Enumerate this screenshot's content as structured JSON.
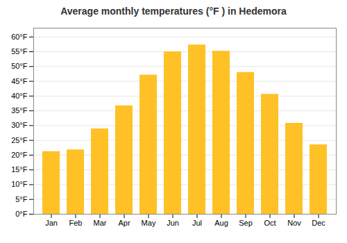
{
  "chart_data": {
    "type": "bar",
    "title": "Average monthly temperatures (°F ) in Hedemora",
    "categories": [
      "Jan",
      "Feb",
      "Mar",
      "Apr",
      "May",
      "Jun",
      "Jul",
      "Aug",
      "Sep",
      "Oct",
      "Nov",
      "Dec"
    ],
    "values": [
      21.2,
      21.8,
      28.9,
      36.7,
      47.1,
      55.0,
      57.3,
      55.2,
      48.0,
      40.6,
      30.8,
      23.5
    ],
    "color": "#FFC125",
    "ylim": [
      0,
      63
    ],
    "yticks": [
      {
        "value": 0,
        "label": "0°F"
      },
      {
        "value": 5,
        "label": "5°F"
      },
      {
        "value": 10,
        "label": "10°F"
      },
      {
        "value": 15,
        "label": "15°F"
      },
      {
        "value": 20,
        "label": "20°F"
      },
      {
        "value": 25,
        "label": "25°F"
      },
      {
        "value": 30,
        "label": "30°F"
      },
      {
        "value": 35,
        "label": "35°F"
      },
      {
        "value": 40,
        "label": "40°F"
      },
      {
        "value": 45,
        "label": "45°F"
      },
      {
        "value": 50,
        "label": "50°F"
      },
      {
        "value": 55,
        "label": "55°F"
      },
      {
        "value": 60,
        "label": "60°F"
      }
    ],
    "grid": true
  }
}
